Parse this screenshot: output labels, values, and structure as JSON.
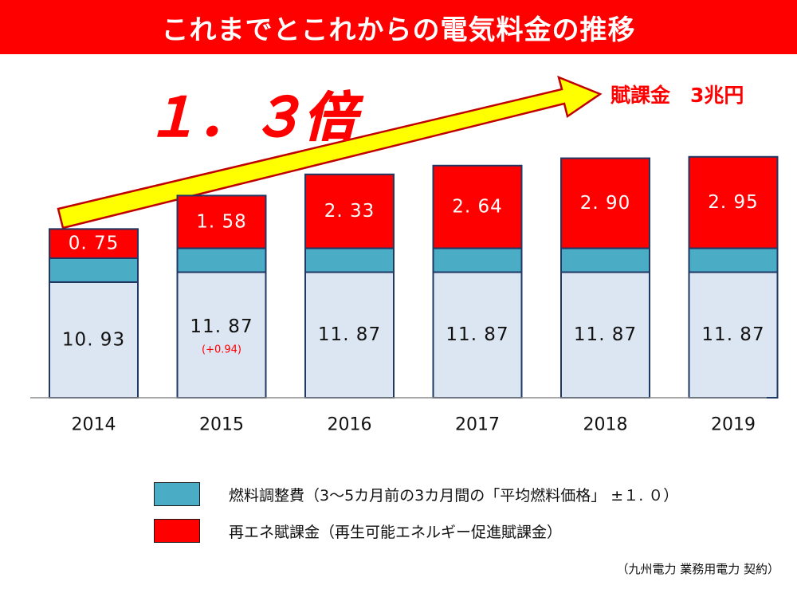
{
  "slide": {
    "title": "これまでとこれからの電気料金の推移",
    "multiplier_text": "１．３倍",
    "target_text": "賦課金　3兆円",
    "source_note": "（九州電力  業務用電力  契約）"
  },
  "chart_data": {
    "type": "bar",
    "stacked": true,
    "categories": [
      "2014",
      "2015",
      "2016",
      "2017",
      "2018",
      "2019"
    ],
    "series": [
      {
        "name": "",
        "color": "#dce6f2",
        "values": [
          10.93,
          11.87,
          11.87,
          11.87,
          11.87,
          11.87
        ],
        "labels": [
          "10. 93",
          "11. 87",
          "11. 87",
          "11. 87",
          "11. 87",
          "11. 87"
        ]
      },
      {
        "name": "燃料調整費（3～5カ月前の3カ月間の「平均燃料価格」 ±１. ０）",
        "color": "#4bacc6",
        "values": [
          1.0,
          1.0,
          1.0,
          1.0,
          1.0,
          1.0
        ]
      },
      {
        "name": "再エネ賦課金（再生可能エネルギー促進賦課金）",
        "color": "#ff0000",
        "values": [
          0.75,
          1.58,
          2.33,
          2.64,
          2.9,
          2.95
        ],
        "labels": [
          "0. 75",
          "1. 58",
          "2. 33",
          "2. 64",
          "2. 90",
          "2. 95"
        ]
      }
    ],
    "annotations": [
      {
        "category": "2015",
        "text": "(+0.94)",
        "color": "#ff0000"
      }
    ],
    "legend_position": "bottom",
    "grid": false
  }
}
